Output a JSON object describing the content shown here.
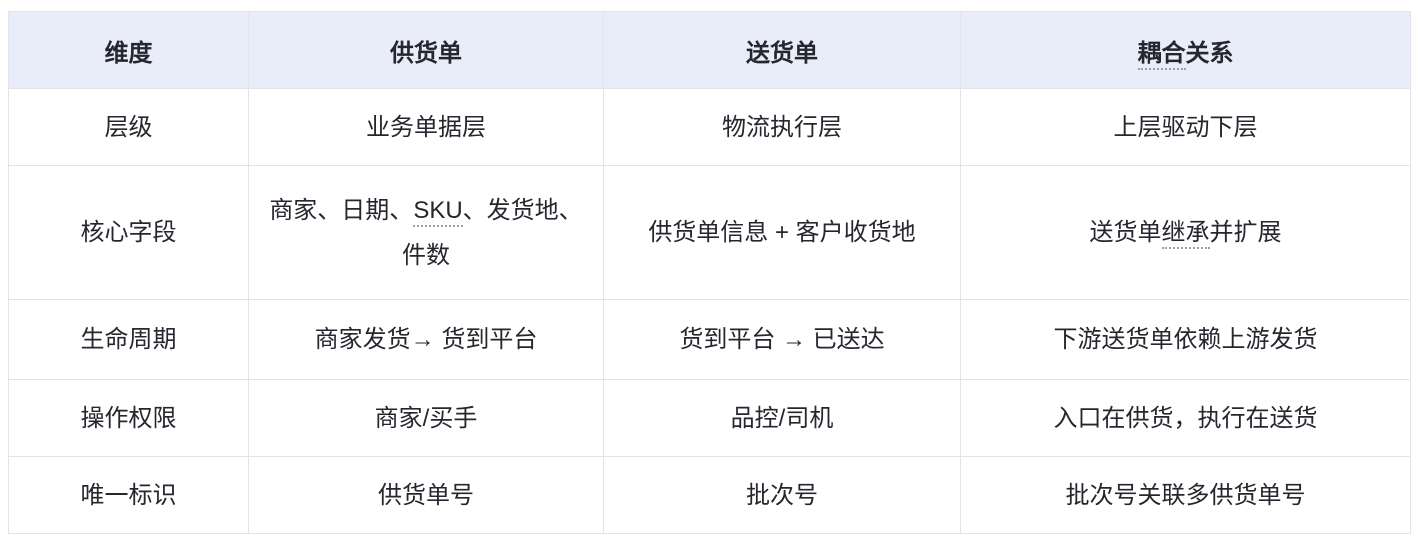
{
  "table": {
    "colors": {
      "header_bg": "#e9edfa",
      "border": "#e2e4ea",
      "text": "#26272e",
      "spellcheck_underline": "#9ba1ad"
    },
    "header": {
      "dimension": "维度",
      "supply": "供货单",
      "delivery": "送货单",
      "coupling_underlined": "耦合",
      "coupling_rest": "关系"
    },
    "rows": [
      {
        "dimension": "层级",
        "supply": "业务单据层",
        "delivery": "物流执行层",
        "coupling": "上层驱动下层"
      },
      {
        "dimension": "核心字段",
        "supply_pre": "商家、日期、",
        "supply_underlined": "SKU",
        "supply_post": "、发货地、件数",
        "delivery": "供货单信息 + 客户收货地",
        "coupling_pre": "送货单",
        "coupling_underlined": "继承",
        "coupling_post": "并扩展"
      },
      {
        "dimension": "生命周期",
        "supply": "商家发货→ 货到平台",
        "delivery": "货到平台 → 已送达",
        "coupling": "下游送货单依赖上游发货"
      },
      {
        "dimension": "操作权限",
        "supply": "商家/买手",
        "delivery": "品控/司机",
        "coupling": "入口在供货，执行在送货"
      },
      {
        "dimension": "唯一标识",
        "supply": "供货单号",
        "delivery": "批次号",
        "coupling": "批次号关联多供货单号"
      }
    ]
  }
}
